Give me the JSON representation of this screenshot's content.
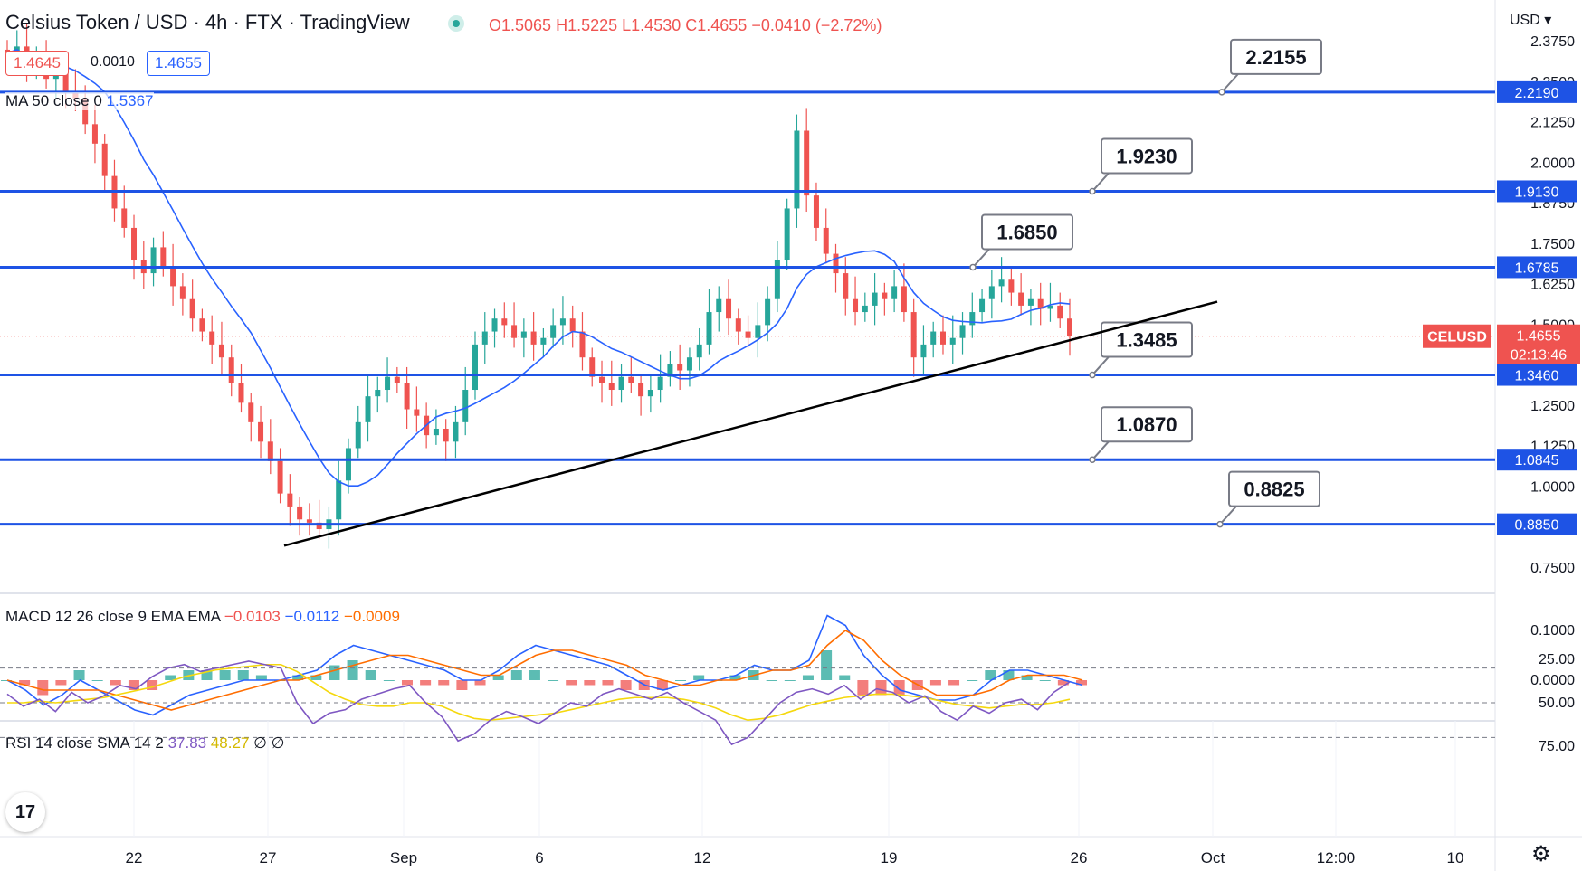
{
  "header": {
    "title": "Celsius Token / USD · 4h · FTX · TradingView",
    "ohlc": {
      "open": "O1.5065",
      "high": "H1.5225",
      "low": "L1.4530",
      "close": "C1.4655",
      "change": "−0.0410 (−2.72%)"
    },
    "bid": "1.4645",
    "spread": "0.0010",
    "ask": "1.4655",
    "ma_label": "MA 50 close 0",
    "ma_value": "1.5367"
  },
  "currency": "USD",
  "colors": {
    "level_line": "#1e53e5",
    "up": "#26a69a",
    "down": "#ef5350",
    "ma": "#2962ff",
    "macd_signal": "#ff6d00",
    "rsi_line": "#7e57c2",
    "rsi_ma": "#f5d80e",
    "trend": "#000000"
  },
  "chart_data": [
    {
      "type": "candlestick",
      "symbol": "CELUSD",
      "last_price": "1.4655",
      "countdown": "02:13:46",
      "ylim": [
        0.72,
        2.4
      ],
      "yticks": [
        "2.3750",
        "2.2500",
        "2.1250",
        "2.0000",
        "1.8750",
        "1.7500",
        "1.6250",
        "1.5000",
        "1.3750",
        "1.2500",
        "1.1250",
        "1.0000",
        "0.8750",
        "0.7500"
      ],
      "xticks": [
        "22",
        "27",
        "Sep",
        "6",
        "12",
        "19",
        "26",
        "Oct",
        "12:00",
        "10"
      ],
      "levels": [
        {
          "axis": "2.2190",
          "callout": "2.2155"
        },
        {
          "axis": "1.9130",
          "callout": "1.9230"
        },
        {
          "axis": "1.6785",
          "callout": "1.6850"
        },
        {
          "axis": "1.3460",
          "callout": "1.3485"
        },
        {
          "axis": "1.0845",
          "callout": "1.0870"
        },
        {
          "axis": "0.8850",
          "callout": "0.8825"
        }
      ],
      "trendline": {
        "from": [
          "Aug 27",
          0.83
        ],
        "to": [
          "Sep 26",
          1.6
        ]
      },
      "close_path": [
        2.34,
        2.36,
        2.3,
        2.32,
        2.26,
        2.28,
        2.22,
        2.2,
        2.12,
        2.06,
        1.96,
        1.86,
        1.8,
        1.7,
        1.66,
        1.74,
        1.68,
        1.62,
        1.58,
        1.52,
        1.48,
        1.44,
        1.4,
        1.32,
        1.26,
        1.2,
        1.14,
        1.08,
        0.98,
        0.94,
        0.9,
        0.89,
        0.87,
        0.9,
        1.02,
        1.12,
        1.2,
        1.28,
        1.3,
        1.34,
        1.32,
        1.24,
        1.22,
        1.16,
        1.18,
        1.14,
        1.2,
        1.3,
        1.44,
        1.48,
        1.52,
        1.5,
        1.46,
        1.48,
        1.44,
        1.46,
        1.5,
        1.52,
        1.48,
        1.4,
        1.34,
        1.32,
        1.3,
        1.34,
        1.32,
        1.28,
        1.3,
        1.34,
        1.38,
        1.36,
        1.4,
        1.44,
        1.54,
        1.58,
        1.52,
        1.48,
        1.46,
        1.5,
        1.58,
        1.7,
        1.86,
        2.1,
        1.9,
        1.8,
        1.72,
        1.66,
        1.58,
        1.54,
        1.56,
        1.6,
        1.58,
        1.62,
        1.54,
        1.4,
        1.44,
        1.48,
        1.44,
        1.46,
        1.5,
        1.54,
        1.58,
        1.62,
        1.64,
        1.6,
        1.56,
        1.58,
        1.55,
        1.56,
        1.52,
        1.4655
      ]
    },
    {
      "type": "line",
      "title": "MACD 12 26 close 9 EMA EMA",
      "values_shown": {
        "histogram": "−0.0103",
        "macd": "−0.0112",
        "signal": "−0.0009"
      },
      "yticks": [
        "0.1000",
        "0.0000"
      ],
      "ylim": [
        -0.07,
        0.15
      ],
      "macd": [
        0.0,
        -0.02,
        -0.05,
        -0.03,
        0.0,
        -0.02,
        -0.04,
        -0.06,
        -0.07,
        -0.05,
        -0.03,
        -0.02,
        -0.01,
        0.0,
        0.0,
        0.0,
        0.01,
        0.02,
        0.05,
        0.07,
        0.06,
        0.05,
        0.04,
        0.03,
        0.02,
        0.0,
        0.0,
        0.02,
        0.05,
        0.07,
        0.06,
        0.05,
        0.04,
        0.03,
        0.01,
        -0.01,
        -0.02,
        -0.01,
        0.0,
        0.0,
        0.01,
        0.03,
        0.02,
        0.02,
        0.04,
        0.13,
        0.11,
        0.05,
        0.01,
        -0.02,
        -0.03,
        -0.04,
        -0.04,
        -0.03,
        0.0,
        0.02,
        0.02,
        0.01,
        0.0,
        -0.01
      ],
      "signal": [
        0.0,
        -0.01,
        -0.02,
        -0.02,
        -0.02,
        -0.02,
        -0.03,
        -0.04,
        -0.05,
        -0.06,
        -0.05,
        -0.04,
        -0.03,
        -0.02,
        -0.01,
        0.0,
        0.0,
        0.01,
        0.02,
        0.03,
        0.04,
        0.05,
        0.05,
        0.04,
        0.03,
        0.02,
        0.01,
        0.01,
        0.03,
        0.05,
        0.06,
        0.06,
        0.05,
        0.04,
        0.03,
        0.01,
        0.0,
        -0.01,
        -0.01,
        0.0,
        0.0,
        0.01,
        0.02,
        0.02,
        0.03,
        0.07,
        0.1,
        0.08,
        0.04,
        0.01,
        -0.01,
        -0.03,
        -0.03,
        -0.03,
        -0.02,
        0.0,
        0.01,
        0.01,
        0.01,
        0.0
      ]
    },
    {
      "type": "line",
      "title": "RSI 14 close SMA 14 2",
      "values_shown": {
        "rsi": "37.83",
        "sma": "48.27",
        "a": "∅",
        "b": "∅"
      },
      "yticks": [
        "75.00",
        "50.00",
        "25.00"
      ],
      "ylim": [
        22,
        80
      ],
      "rsi": [
        45,
        52,
        48,
        55,
        44,
        50,
        46,
        40,
        42,
        35,
        30,
        28,
        32,
        30,
        28,
        26,
        28,
        30,
        50,
        62,
        56,
        54,
        48,
        45,
        42,
        40,
        50,
        58,
        72,
        68,
        60,
        55,
        58,
        62,
        56,
        50,
        52,
        45,
        42,
        45,
        48,
        44,
        50,
        55,
        60,
        74,
        70,
        60,
        50,
        44,
        42,
        45,
        40,
        48,
        42,
        44,
        50,
        46,
        55,
        60,
        52,
        56,
        50,
        48,
        54,
        44,
        38
      ],
      "rsi_sma": [
        50,
        50,
        49,
        50,
        49,
        48,
        47,
        45,
        43,
        41,
        38,
        35,
        33,
        31,
        30,
        29,
        28,
        28,
        32,
        38,
        44,
        48,
        51,
        52,
        52,
        50,
        50,
        52,
        56,
        59,
        60,
        59,
        58,
        57,
        56,
        54,
        52,
        50,
        48,
        47,
        47,
        47,
        48,
        50,
        53,
        57,
        60,
        59,
        57,
        54,
        51,
        49,
        47,
        46,
        45,
        45,
        46,
        47,
        49,
        51,
        52,
        53,
        52,
        51,
        51,
        50,
        48
      ]
    }
  ]
}
